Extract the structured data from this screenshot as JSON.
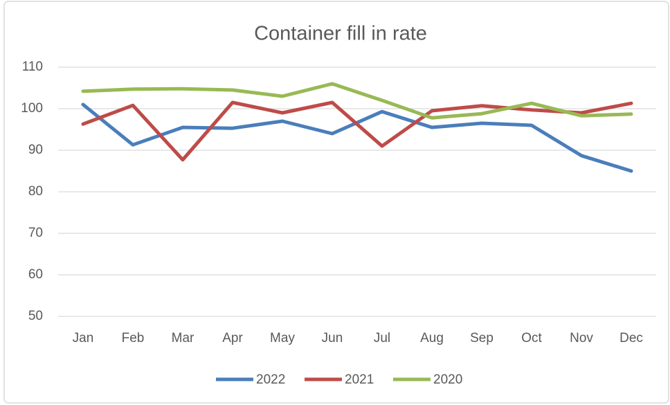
{
  "chart_data": {
    "type": "line",
    "title": "Container fill in rate",
    "categories": [
      "Jan",
      "Feb",
      "Mar",
      "Apr",
      "May",
      "Jun",
      "Jul",
      "Aug",
      "Sep",
      "Oct",
      "Nov",
      "Dec"
    ],
    "series": [
      {
        "name": "2022",
        "color": "#4a7ebb",
        "values": [
          101,
          91.3,
          95.5,
          95.3,
          97,
          94,
          99.3,
          95.5,
          96.5,
          96,
          88.7,
          85
        ]
      },
      {
        "name": "2021",
        "color": "#be4b48",
        "values": [
          96.3,
          100.8,
          87.7,
          101.5,
          99,
          101.5,
          91,
          99.5,
          100.7,
          99.7,
          99,
          101.3
        ]
      },
      {
        "name": "2020",
        "color": "#98b954",
        "values": [
          104.2,
          104.7,
          104.8,
          104.5,
          103,
          106,
          102,
          97.8,
          98.8,
          101.3,
          98.3,
          98.7
        ]
      }
    ],
    "ylim": [
      50,
      110
    ],
    "yticks": [
      50,
      60,
      70,
      80,
      90,
      100,
      110
    ],
    "grid": true,
    "legend": "bottom"
  }
}
